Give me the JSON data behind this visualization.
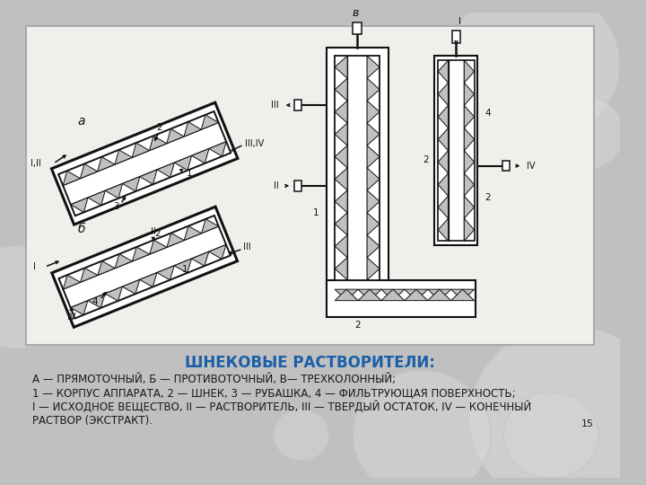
{
  "bg_color": "#c0c0c0",
  "panel_bg": "#f0efec",
  "panel_border": "#aaaaaa",
  "lc": "#111111",
  "title_text": "ШНЕКОВЫЕ РАСТВОРИТЕЛИ:",
  "title_color": "#1a5fa8",
  "title_fs": 12,
  "line1": "А — ПРЯМОТОЧНЫЙ, Б — ПРОТИВОТОЧНЫЙ, В— ТРЕХКОЛОННЫЙ;",
  "line2": "1 — КОРПУС АППАРАТА, 2 — ШНЕК, 3 — РУБАШКА, 4 — ФИЛЬТРУЮЩАЯ ПОВЕРХНОСТЬ;",
  "line3": "I — ИСХОДНОЕ ВЕЩЕСТВО, II — РАСТВОРИТЕЛЬ, III — ТВЕРДЫЙ ОСТАТОК, IV — КОНЕЧНЫЙ",
  "line4": "РАСТВОР (ЭКСТРАКТ).",
  "text_fs": 8.5,
  "text_color": "#1a1a1a",
  "page_num": "15"
}
